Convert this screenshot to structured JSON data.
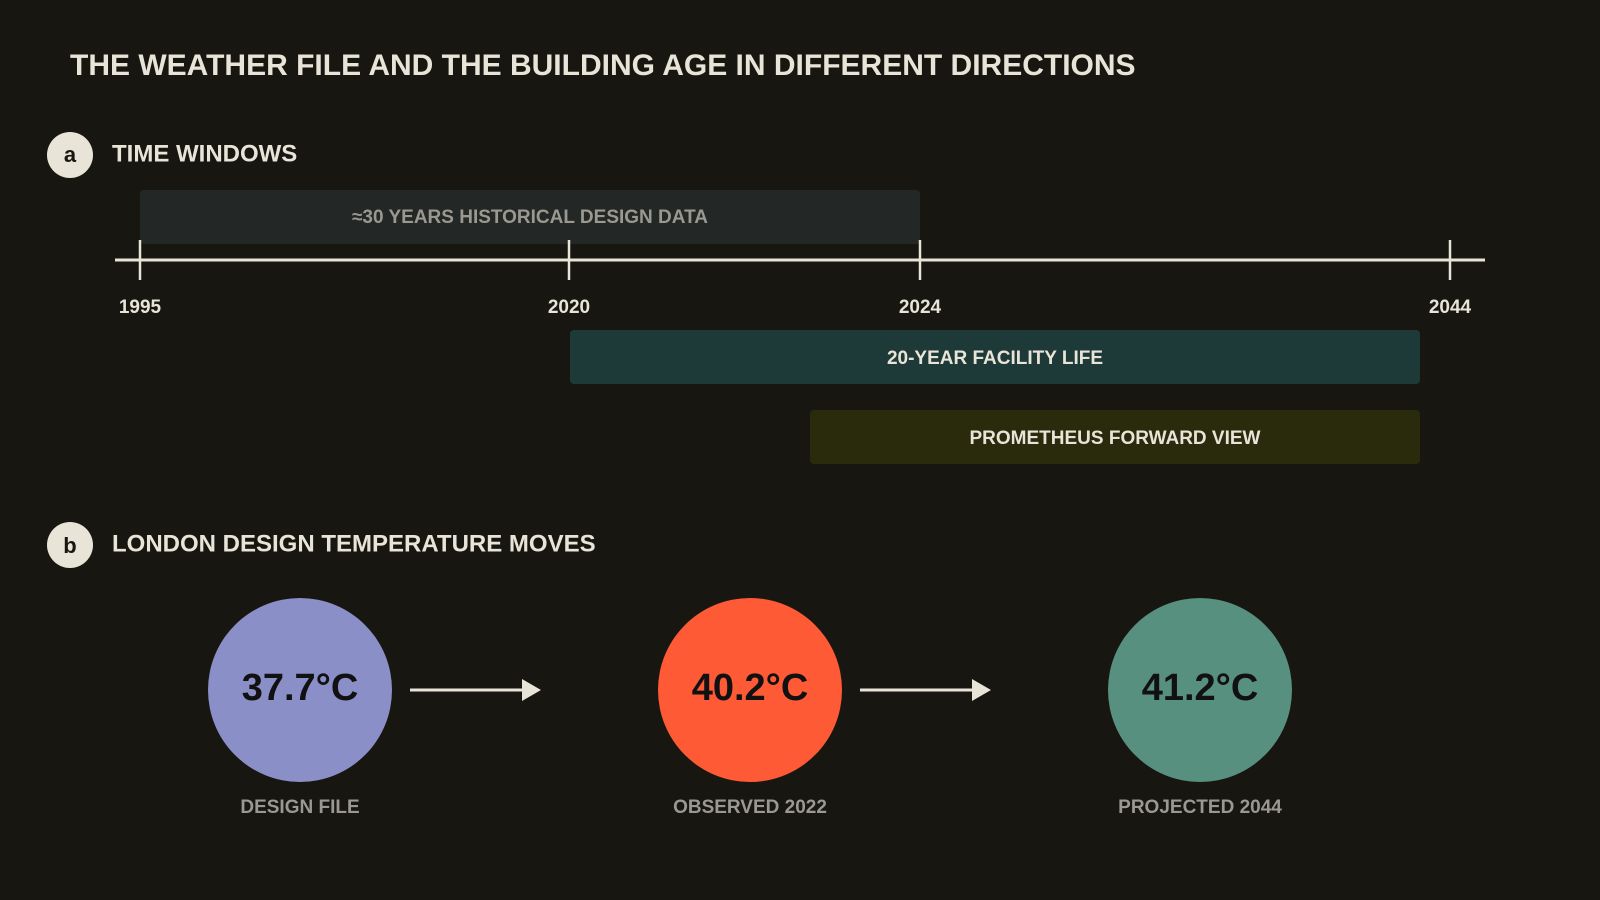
{
  "title": "THE WEATHER FILE AND THE BUILDING AGE IN DIFFERENT DIRECTIONS",
  "panel_a": {
    "badge": "a",
    "title": "TIME WINDOWS",
    "ticks": [
      "1995",
      "2020",
      "2024",
      "2044"
    ],
    "bars": [
      "≈30 YEARS HISTORICAL DESIGN DATA",
      "20-YEAR FACILITY LIFE",
      "PROMETHEUS FORWARD VIEW"
    ]
  },
  "panel_b": {
    "badge": "b",
    "title": "LONDON DESIGN TEMPERATURE MOVES",
    "items": [
      {
        "value": "37.7°C",
        "label": "DESIGN FILE"
      },
      {
        "value": "40.2°C",
        "label": "OBSERVED 2022"
      },
      {
        "value": "41.2°C",
        "label": "PROJECTED 2044"
      }
    ]
  }
}
